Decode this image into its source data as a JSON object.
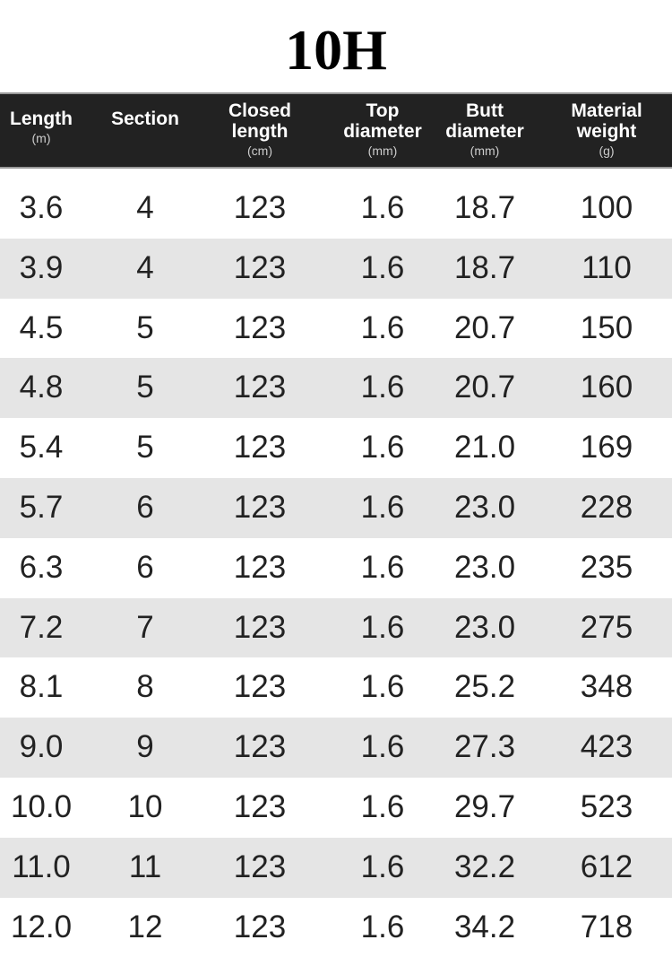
{
  "title": "10H",
  "headers": [
    {
      "label": "Length",
      "unit": "(m)"
    },
    {
      "label": "Section",
      "unit": ""
    },
    {
      "label": "Closed length",
      "unit": "(cm)"
    },
    {
      "label": "Top diameter",
      "unit": "(mm)"
    },
    {
      "label": "Butt diameter",
      "unit": "(mm)"
    },
    {
      "label": "Material weight",
      "unit": "(g)"
    }
  ],
  "rows": [
    [
      "3.6",
      "4",
      "123",
      "1.6",
      "18.7",
      "100"
    ],
    [
      "3.9",
      "4",
      "123",
      "1.6",
      "18.7",
      "110"
    ],
    [
      "4.5",
      "5",
      "123",
      "1.6",
      "20.7",
      "150"
    ],
    [
      "4.8",
      "5",
      "123",
      "1.6",
      "20.7",
      "160"
    ],
    [
      "5.4",
      "5",
      "123",
      "1.6",
      "21.0",
      "169"
    ],
    [
      "5.7",
      "6",
      "123",
      "1.6",
      "23.0",
      "228"
    ],
    [
      "6.3",
      "6",
      "123",
      "1.6",
      "23.0",
      "235"
    ],
    [
      "7.2",
      "7",
      "123",
      "1.6",
      "23.0",
      "275"
    ],
    [
      "8.1",
      "8",
      "123",
      "1.6",
      "25.2",
      "348"
    ],
    [
      "9.0",
      "9",
      "123",
      "1.6",
      "27.3",
      "423"
    ],
    [
      "10.0",
      "10",
      "123",
      "1.6",
      "29.7",
      "523"
    ],
    [
      "11.0",
      "11",
      "123",
      "1.6",
      "32.2",
      "612"
    ],
    [
      "12.0",
      "12",
      "123",
      "1.6",
      "34.2",
      "718"
    ]
  ]
}
